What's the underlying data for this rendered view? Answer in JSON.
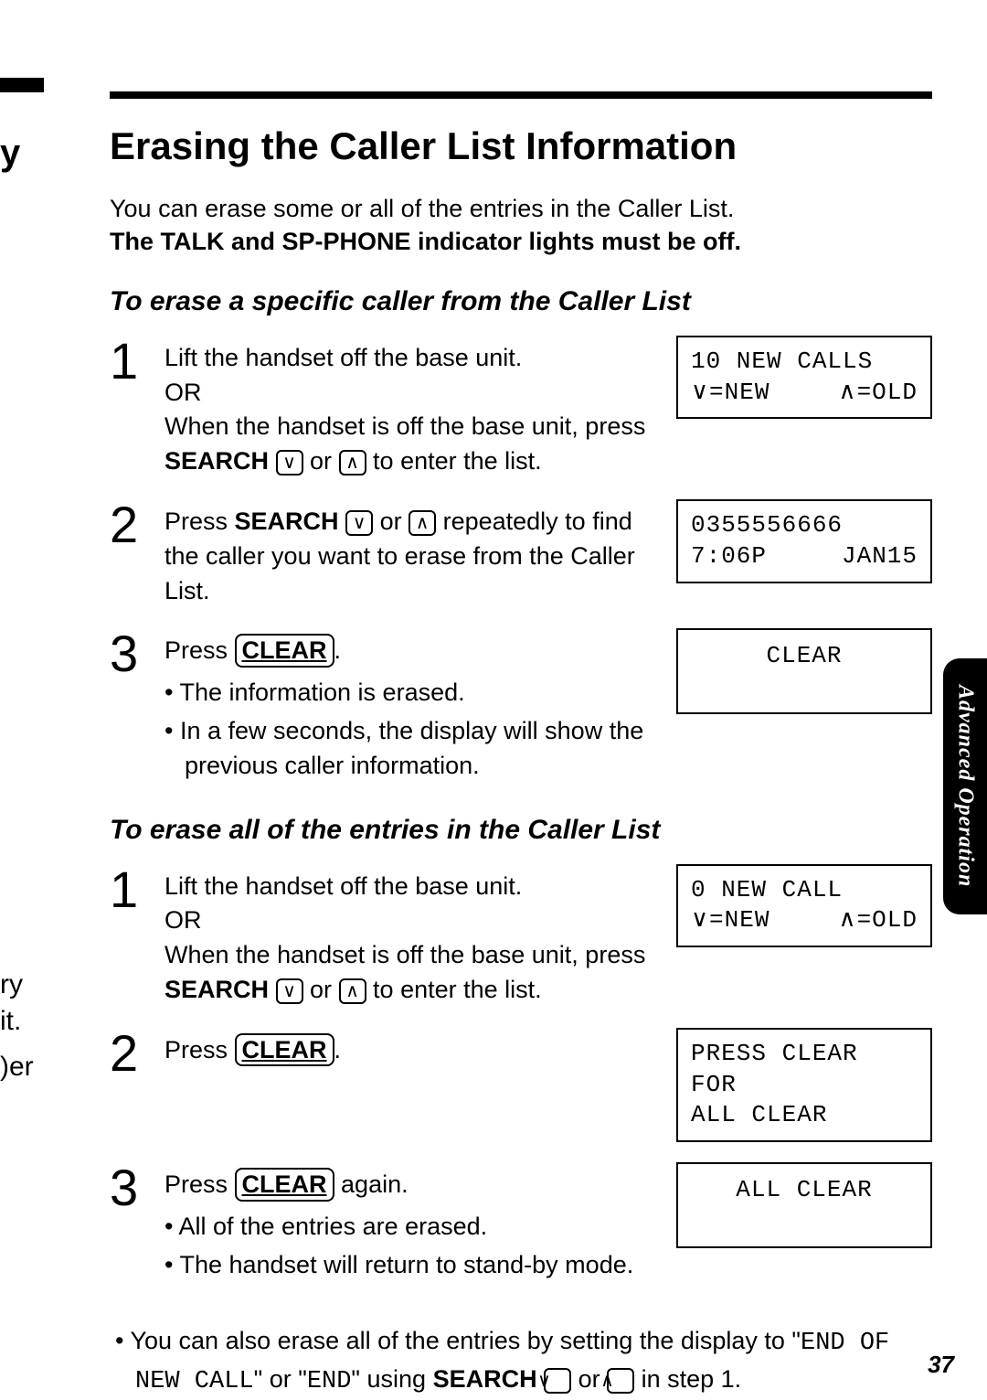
{
  "margin": {
    "y": "y",
    "ry": "ry",
    "it": "it.",
    "er": ")er"
  },
  "title": "Erasing the Caller List Information",
  "intro_line1": "You can erase some or all of the entries in the Caller List.",
  "intro_line2": "The TALK and SP-PHONE indicator lights must be off.",
  "section1": {
    "heading": "To erase a specific caller from the Caller List",
    "steps": [
      {
        "num": "1",
        "text_a": "Lift the handset off the base unit.",
        "text_b": "OR",
        "text_c_pre": "When the handset is off the base unit, press ",
        "text_c_bold": "SEARCH",
        "text_c_mid": " or ",
        "text_c_end": " to enter the list.",
        "lcd": {
          "line1": "10 NEW CALLS",
          "l2a": "∨=NEW",
          "l2b": "∧=OLD"
        }
      },
      {
        "num": "2",
        "text_a_pre": "Press ",
        "text_a_bold": "SEARCH",
        "text_a_mid": " or ",
        "text_a_end": " repeatedly to find the caller you want to erase from the Caller List.",
        "lcd": {
          "line1": "0355556666",
          "l2a": "7:06P",
          "l2b": "JAN15"
        }
      },
      {
        "num": "3",
        "text_a_pre": "Press ",
        "text_a_key": "CLEAR",
        "text_a_end": ".",
        "bullets": [
          "The information is erased.",
          "In a few seconds, the display will show the previous caller information."
        ],
        "lcd": {
          "center": "CLEAR"
        }
      }
    ]
  },
  "section2": {
    "heading": "To erase all of the entries in the Caller List",
    "steps": [
      {
        "num": "1",
        "text_a": "Lift the handset off the base unit.",
        "text_b": "OR",
        "text_c_pre": "When the handset is off the base unit, press ",
        "text_c_bold": "SEARCH",
        "text_c_mid": " or ",
        "text_c_end": " to enter the list.",
        "lcd": {
          "line1": "0 NEW CALL",
          "l2a": "∨=NEW",
          "l2b": "∧=OLD"
        }
      },
      {
        "num": "2",
        "text_a_pre": "Press ",
        "text_a_key": "CLEAR",
        "text_a_end": ".",
        "lcd": {
          "line1": "PRESS CLEAR FOR",
          "line2": "ALL CLEAR"
        }
      },
      {
        "num": "3",
        "text_a_pre": "Press ",
        "text_a_key": "CLEAR",
        "text_a_end": " again.",
        "bullets": [
          "All of the entries are erased.",
          "The handset will return to stand-by mode."
        ],
        "lcd": {
          "center": "ALL CLEAR"
        }
      }
    ]
  },
  "footnote": {
    "pre": "You can also erase all of the entries by setting the display to \"",
    "mono1": "END OF NEW CALL",
    "mid1": "\" or \"",
    "mono2": "END",
    "mid2": "\" using ",
    "bold": "SEARCH",
    "mid3": " or ",
    "end": " in step 1."
  },
  "side_tab": "Advanced Operation",
  "page_number": "37",
  "icons": {
    "down": "∨",
    "up": "∧"
  },
  "style": {
    "page_bg": "#ffffff",
    "text_color": "#000000",
    "rule_color": "#000000",
    "lcd_border": "#000000",
    "tab_bg": "#000000",
    "tab_fg": "#ffffff",
    "h1_fontsize": 42,
    "h2_fontsize": 30,
    "body_fontsize": 27,
    "stepnum_fontsize": 56,
    "lcd_font": "Courier New",
    "lcd_fontsize": 26,
    "lcd_width": 280
  }
}
